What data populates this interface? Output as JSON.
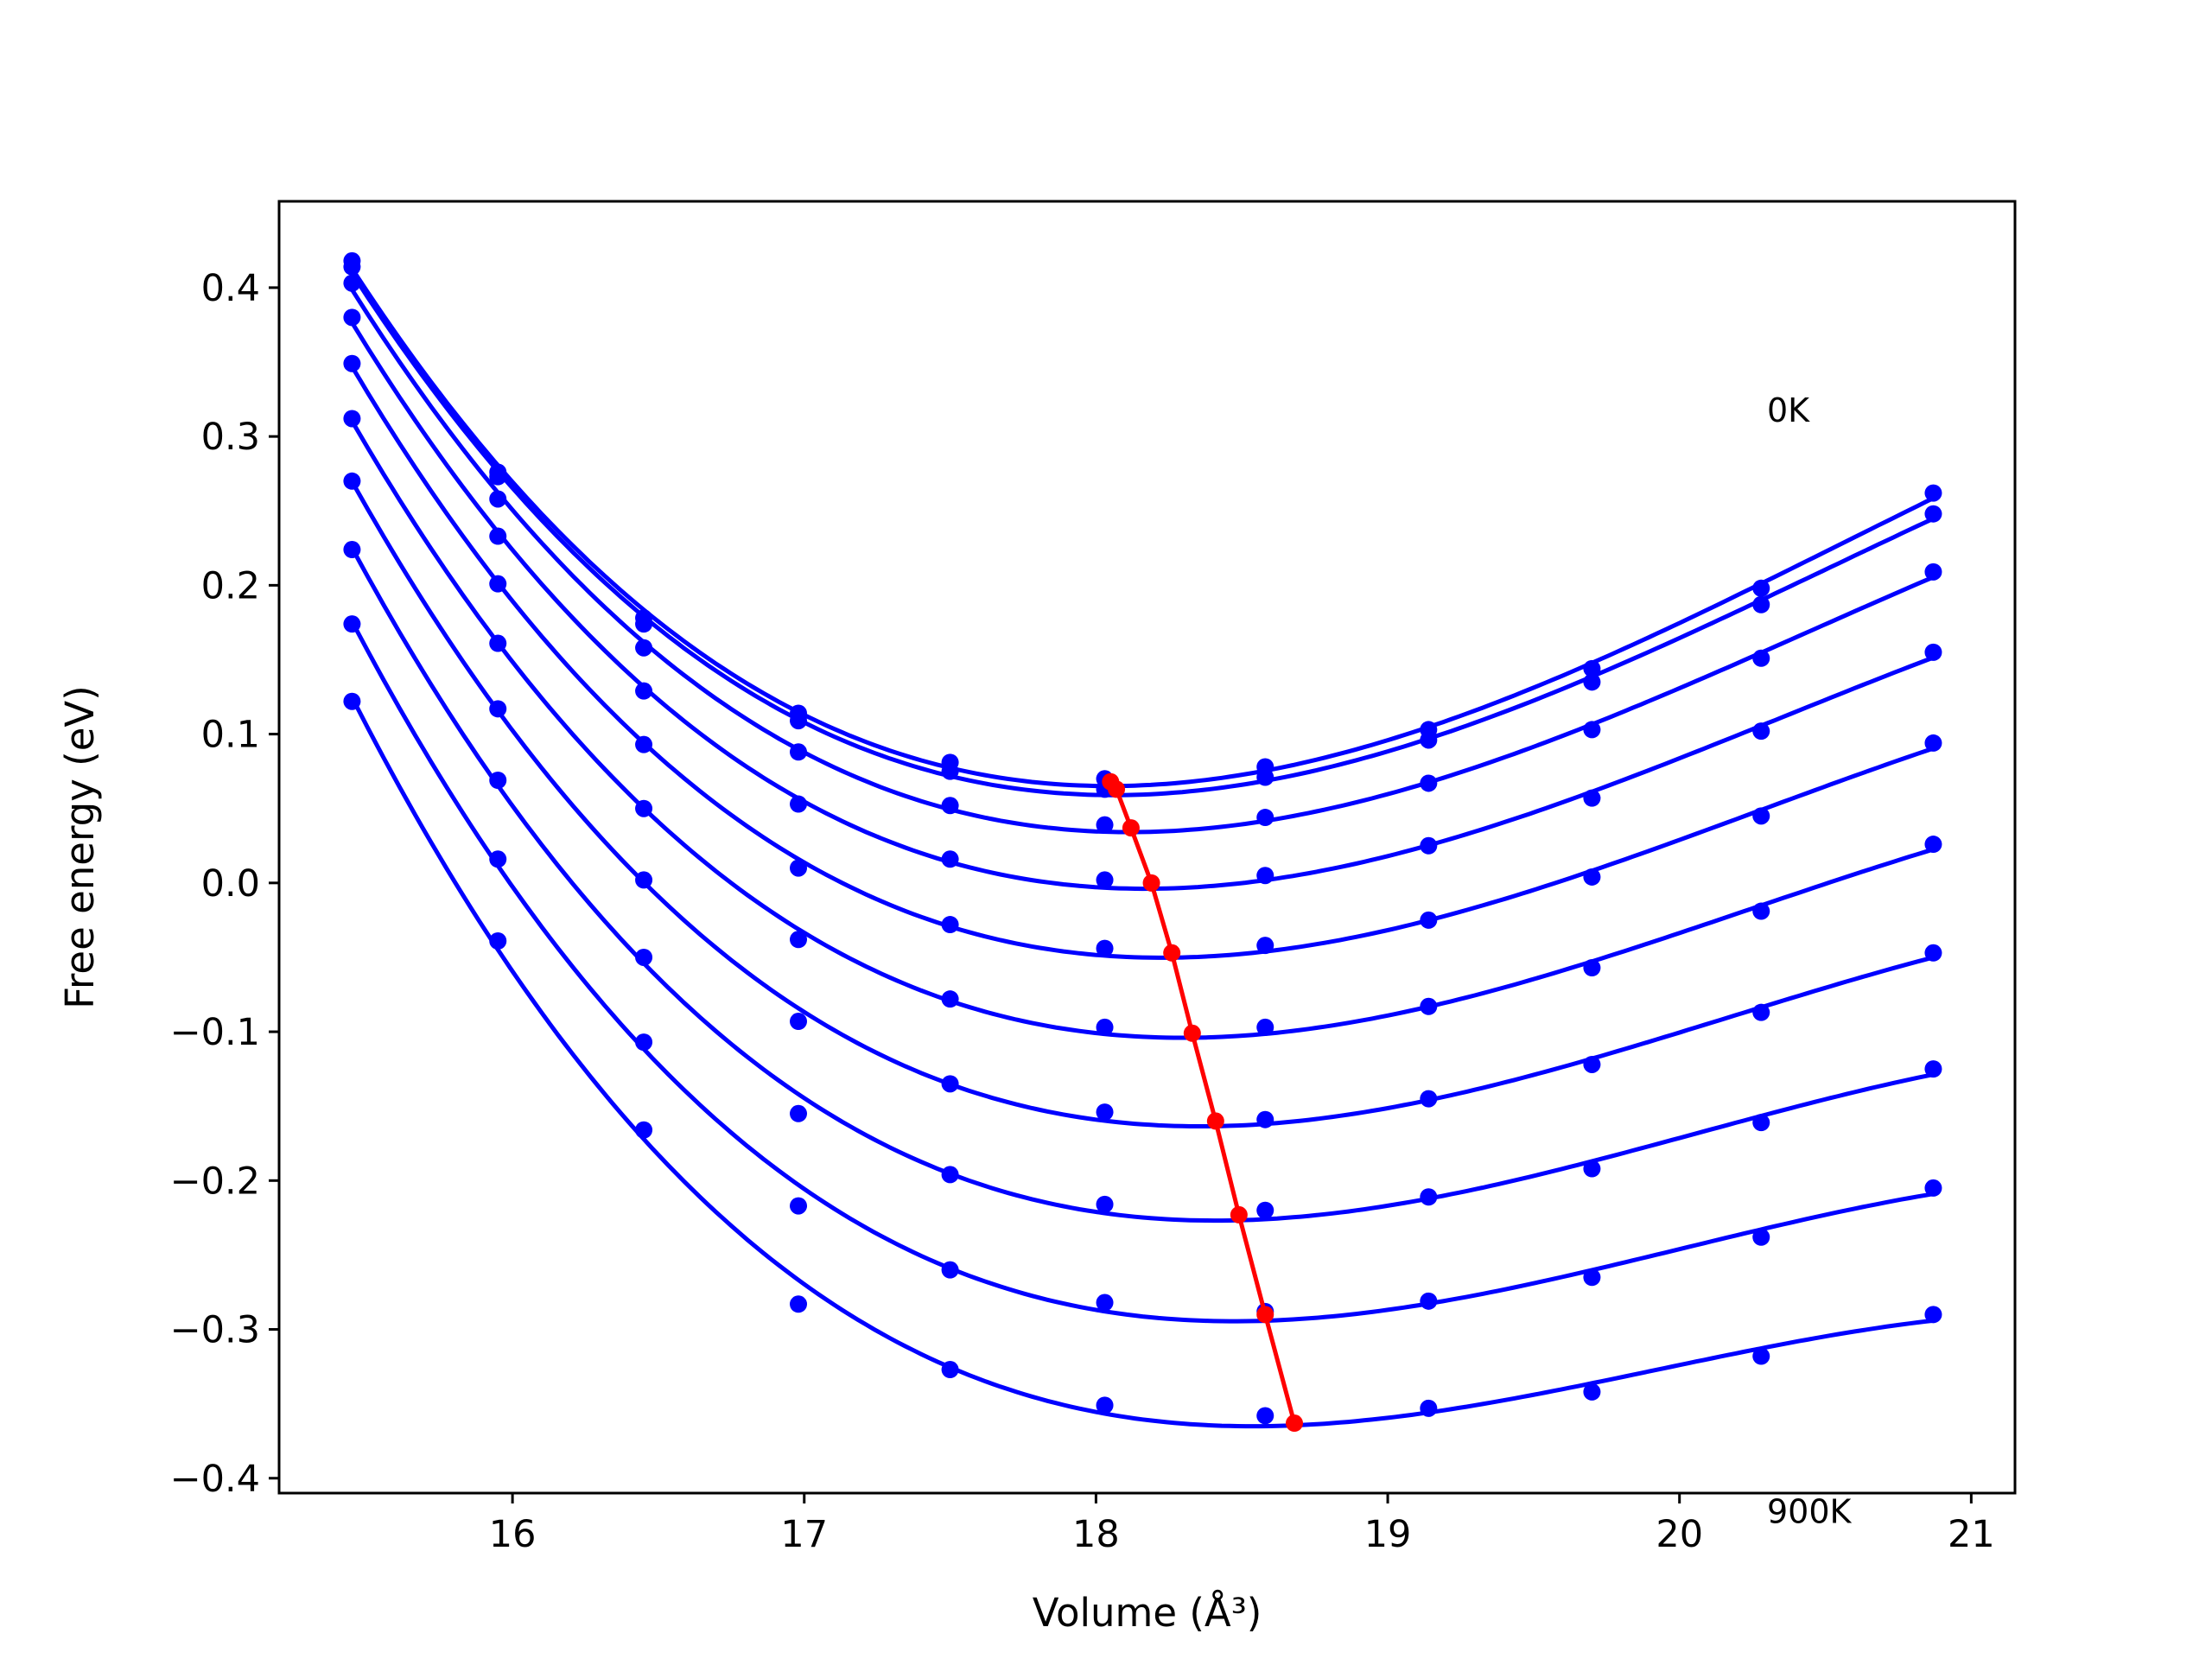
{
  "chart_data": {
    "type": "line",
    "title": "",
    "xlabel": "Volume (Å³)",
    "ylabel": "Free energy (eV)",
    "xlim": [
      15.2,
      21.15
    ],
    "ylim": [
      -0.41,
      0.458
    ],
    "xticks": [
      16,
      17,
      18,
      19,
      20,
      21
    ],
    "yticks": [
      -0.4,
      -0.3,
      -0.2,
      -0.1,
      0.0,
      0.1,
      0.2,
      0.3,
      0.4
    ],
    "ytick_labels": [
      "−0.4",
      "−0.3",
      "−0.2",
      "−0.1",
      "0.0",
      "0.1",
      "0.2",
      "0.3",
      "0.4"
    ],
    "grid": false,
    "annotations": [
      {
        "text": "0K",
        "x": 20.3,
        "y": 0.31
      },
      {
        "text": "900K",
        "x": 20.3,
        "y": -0.43
      }
    ],
    "colors": {
      "series": "#0000ff",
      "minima": "#ff0000",
      "frame": "#000000"
    },
    "volumes": [
      15.45,
      15.95,
      16.45,
      16.98,
      17.5,
      18.03,
      18.58,
      19.14,
      19.7,
      20.28,
      20.87
    ],
    "series": [
      {
        "temperature_index": 0,
        "points": [
          0.418,
          0.276,
          0.178,
          0.114,
          0.081,
          0.07,
          0.078,
          0.103,
          0.144,
          0.198,
          0.262
        ],
        "fit_min": [
          18.05,
          0.068
        ]
      },
      {
        "temperature_index": 1,
        "points": [
          0.414,
          0.273,
          0.174,
          0.109,
          0.075,
          0.063,
          0.071,
          0.096,
          0.135,
          0.187,
          0.248
        ],
        "fit_min": [
          18.07,
          0.063
        ]
      },
      {
        "temperature_index": 2,
        "points": [
          0.403,
          0.258,
          0.158,
          0.088,
          0.052,
          0.039,
          0.044,
          0.067,
          0.103,
          0.151,
          0.209
        ],
        "fit_min": [
          18.12,
          0.037
        ]
      },
      {
        "temperature_index": 3,
        "points": [
          0.38,
          0.233,
          0.129,
          0.053,
          0.016,
          0.002,
          0.005,
          0.025,
          0.057,
          0.102,
          0.155
        ],
        "fit_min": [
          18.19,
          0.0
        ]
      },
      {
        "temperature_index": 4,
        "points": [
          0.349,
          0.201,
          0.093,
          0.01,
          -0.028,
          -0.044,
          -0.042,
          -0.025,
          0.004,
          0.045,
          0.094
        ],
        "fit_min": [
          18.26,
          -0.047
        ]
      },
      {
        "temperature_index": 5,
        "points": [
          0.312,
          0.161,
          0.05,
          -0.038,
          -0.078,
          -0.097,
          -0.097,
          -0.083,
          -0.057,
          -0.019,
          0.026
        ],
        "fit_min": [
          18.33,
          -0.101
        ]
      },
      {
        "temperature_index": 6,
        "points": [
          0.27,
          0.117,
          0.002,
          -0.093,
          -0.135,
          -0.154,
          -0.159,
          -0.145,
          -0.122,
          -0.087,
          -0.047
        ],
        "fit_min": [
          18.41,
          -0.16
        ]
      },
      {
        "temperature_index": 7,
        "points": [
          0.224,
          0.069,
          -0.05,
          -0.155,
          -0.196,
          -0.216,
          -0.22,
          -0.211,
          -0.192,
          -0.161,
          -0.125
        ],
        "fit_min": [
          18.49,
          -0.223
        ]
      },
      {
        "temperature_index": 8,
        "points": [
          0.174,
          0.016,
          -0.107,
          -0.217,
          -0.26,
          -0.282,
          -0.288,
          -0.281,
          -0.265,
          -0.238,
          -0.205
        ],
        "fit_min": [
          18.58,
          -0.29
        ]
      },
      {
        "temperature_index": 9,
        "points": [
          0.122,
          -0.039,
          -0.166,
          -0.283,
          -0.327,
          -0.351,
          -0.358,
          -0.353,
          -0.342,
          -0.318,
          -0.29
        ],
        "fit_min": [
          18.68,
          -0.363
        ]
      }
    ]
  }
}
